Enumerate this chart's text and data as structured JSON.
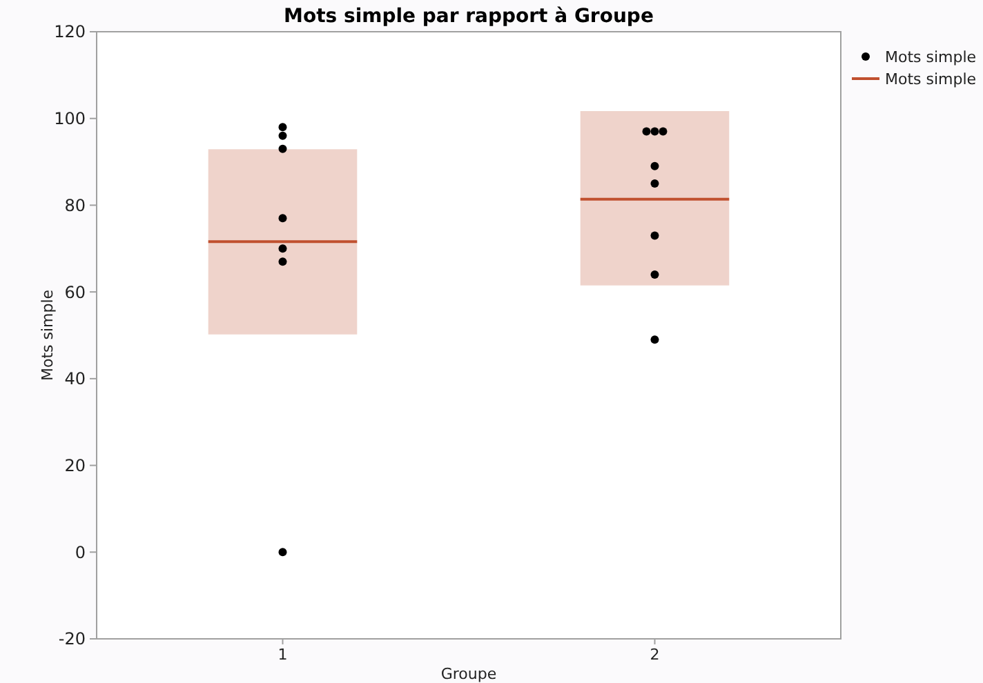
{
  "chart_data": {
    "type": "scatter",
    "title": "Mots simple par rapport à Groupe",
    "xlabel": "Groupe",
    "ylabel": "Mots simple",
    "categories": [
      "1",
      "2"
    ],
    "ylim": [
      -20,
      120
    ],
    "yticks": [
      -20,
      0,
      20,
      40,
      60,
      80,
      100,
      120
    ],
    "grid": false,
    "legend": "top right",
    "series": [
      {
        "name": "Mots simple",
        "color": "#000000",
        "marker": "circle",
        "x": [
          "1",
          "1",
          "1",
          "1",
          "1",
          "1",
          "1",
          "2",
          "2",
          "2",
          "2",
          "2",
          "2",
          "2",
          "2"
        ],
        "values": [
          98,
          96,
          93,
          77,
          70,
          67,
          0,
          97,
          97,
          97,
          89,
          85,
          73,
          64,
          49
        ]
      },
      {
        "name": "Mots simple",
        "type": "box",
        "color": "#c0502f",
        "boxes": [
          {
            "low": 50.2,
            "q1": 50.2,
            "median": 71.6,
            "q3": 92.9,
            "high": 92.9
          },
          {
            "low": 61.5,
            "q1": 61.5,
            "median": 81.4,
            "q3": 101.7,
            "high": 101.7
          }
        ]
      }
    ]
  }
}
